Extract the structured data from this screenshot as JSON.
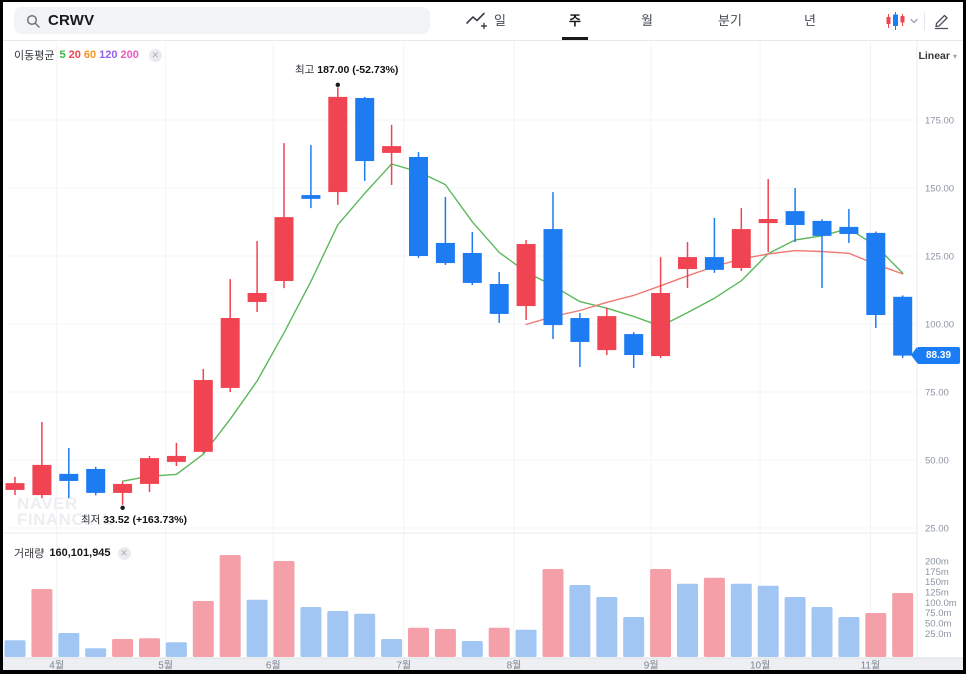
{
  "topbar": {
    "search_value": "CRWV",
    "tabs": [
      {
        "label": "일",
        "active": false
      },
      {
        "label": "주",
        "active": true
      },
      {
        "label": "월",
        "active": false
      },
      {
        "label": "분기",
        "active": false
      },
      {
        "label": "년",
        "active": false
      }
    ]
  },
  "price_pane": {
    "ma_legend": {
      "title": "이동평균",
      "periods": [
        {
          "label": "5",
          "color": "#3db44c"
        },
        {
          "label": "20",
          "color": "#f04452"
        },
        {
          "label": "60",
          "color": "#f7941d"
        },
        {
          "label": "120",
          "color": "#8f63e8"
        },
        {
          "label": "200",
          "color": "#ef58c2"
        }
      ]
    },
    "scale_label": "Linear",
    "high_annotation": {
      "label": "최고",
      "text": "187.00 (-52.73%)"
    },
    "low_annotation": {
      "label": "최저",
      "text": "33.52 (+163.73%)"
    },
    "current_price": "88.39",
    "watermark_line1": "NAVER",
    "watermark_line2": "FINANCIAL",
    "y_ticks": [
      "175.00",
      "150.00",
      "125.00",
      "100.00",
      "75.00",
      "50.00",
      "25.00"
    ]
  },
  "volume_pane": {
    "legend_title": "거래량",
    "legend_value": "160,101,945",
    "y_ticks": [
      "200m",
      "175m",
      "150m",
      "125m",
      "100.0m",
      "75.0m",
      "50.0m",
      "25.0m"
    ]
  },
  "x_axis": {
    "months": [
      "4월",
      "5월",
      "6월",
      "7월",
      "8월",
      "9월",
      "10월",
      "11월"
    ]
  },
  "chart_data": {
    "type": "candlestick",
    "symbol": "CRWV",
    "interval": "week",
    "scale": "linear",
    "price_axis": {
      "min": 25,
      "max": 190,
      "ticks": [
        175,
        150,
        125,
        100,
        75,
        50,
        25
      ]
    },
    "volume_axis_ticks_millions": [
      200,
      175,
      150,
      125,
      100,
      75,
      50,
      25
    ],
    "up_color": "#f04452",
    "down_color": "#1e7cf2",
    "vol_up_color": "#f5a0a8",
    "vol_down_color": "#a2c6f4",
    "ma5_color": "#5cb85c",
    "ma20_color": "#ee7b72",
    "high_marker": {
      "index": 12,
      "price": 187.0,
      "change_pct": "-52.73%"
    },
    "low_marker": {
      "index": 4,
      "price": 33.52,
      "change_pct": "+163.73%"
    },
    "last_price": 88.39,
    "last_volume": 160101945,
    "candle_fields": [
      "open",
      "high",
      "low",
      "close",
      "volume_millions",
      "volume_bar_direction"
    ],
    "candles": [
      [
        39.0,
        43.8,
        37.1,
        41.5,
        42,
        "d"
      ],
      [
        37.1,
        64.0,
        36.0,
        48.2,
        170,
        "u"
      ],
      [
        44.9,
        54.4,
        36.0,
        42.3,
        60,
        "d"
      ],
      [
        46.7,
        47.5,
        37.0,
        37.9,
        22,
        "d"
      ],
      [
        37.9,
        42.0,
        33.52,
        41.2,
        45,
        "u"
      ],
      [
        41.2,
        51.5,
        38.2,
        50.7,
        47,
        "u"
      ],
      [
        49.3,
        56.3,
        47.8,
        51.5,
        37,
        "d"
      ],
      [
        53.0,
        83.5,
        52.5,
        79.4,
        140,
        "u"
      ],
      [
        76.5,
        116.5,
        75.0,
        102.2,
        255,
        "u"
      ],
      [
        108.1,
        130.5,
        104.4,
        111.4,
        143,
        "d"
      ],
      [
        115.8,
        166.5,
        113.2,
        139.3,
        240,
        "u"
      ],
      [
        147.4,
        165.8,
        142.6,
        146.0,
        125,
        "d"
      ],
      [
        148.5,
        187.0,
        143.8,
        183.5,
        115,
        "d"
      ],
      [
        183.1,
        183.5,
        152.6,
        159.9,
        108,
        "d"
      ],
      [
        162.9,
        173.2,
        151.1,
        165.4,
        45,
        "d"
      ],
      [
        161.4,
        163.2,
        124.3,
        125.0,
        73,
        "u"
      ],
      [
        129.8,
        146.7,
        121.7,
        122.4,
        70,
        "u"
      ],
      [
        126.1,
        133.8,
        114.3,
        115.1,
        40,
        "d"
      ],
      [
        114.7,
        119.1,
        100.4,
        103.7,
        73,
        "u"
      ],
      [
        106.6,
        130.9,
        101.5,
        129.4,
        68,
        "d"
      ],
      [
        134.9,
        148.5,
        94.5,
        99.6,
        220,
        "u"
      ],
      [
        102.2,
        104.0,
        84.2,
        93.4,
        180,
        "d"
      ],
      [
        90.4,
        105.9,
        88.6,
        102.9,
        150,
        "d"
      ],
      [
        96.3,
        97.0,
        83.8,
        88.6,
        100,
        "d"
      ],
      [
        88.2,
        124.6,
        87.5,
        111.4,
        220,
        "u"
      ],
      [
        120.2,
        130.1,
        113.2,
        124.6,
        183,
        "d"
      ],
      [
        124.6,
        139.0,
        118.8,
        119.9,
        198,
        "u"
      ],
      [
        120.6,
        142.6,
        119.5,
        134.9,
        183,
        "d"
      ],
      [
        137.1,
        153.3,
        126.5,
        138.6,
        178,
        "d"
      ],
      [
        141.5,
        150.0,
        130.1,
        136.4,
        150,
        "d"
      ],
      [
        137.9,
        138.5,
        113.2,
        132.4,
        125,
        "d"
      ],
      [
        135.7,
        142.3,
        129.8,
        133.1,
        100,
        "d"
      ],
      [
        133.5,
        134.0,
        98.5,
        103.3,
        110,
        "u"
      ],
      [
        110.0,
        110.5,
        87.5,
        88.39,
        160.1,
        "u"
      ]
    ],
    "month_boundaries_index": [
      1.55,
      5.6,
      9.6,
      14.45,
      18.55,
      23.65,
      27.7,
      31.8
    ],
    "moving_averages_shown": [
      5,
      20
    ]
  }
}
